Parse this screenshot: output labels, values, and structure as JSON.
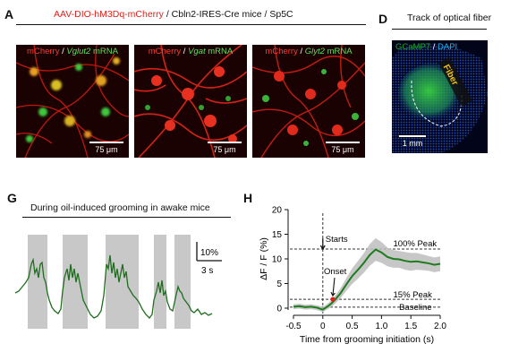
{
  "panelA": {
    "letter": "A",
    "title_red": "AAV-DIO-hM3Dq-mCherry",
    "title_black": " / Cbln2-IRES-Cre mice / Sp5C",
    "images": [
      {
        "red": "mCherry",
        "sep": " / ",
        "gene": "Vglut2",
        "green": " mRNA",
        "scale": "75 μm"
      },
      {
        "red": "mCherry",
        "sep": " / ",
        "gene": "Vgat",
        "green": " mRNA",
        "scale": "75 μm"
      },
      {
        "red": "mCherry",
        "sep": " / ",
        "gene": "Glyt2",
        "green": " mRNA",
        "scale": "75 μm"
      }
    ]
  },
  "panelD": {
    "letter": "D",
    "title": "Track of optical fiber",
    "stain_green": "GCaMP7",
    "stain_sep": " / ",
    "stain_blue": "DAPI",
    "fiber_label": "Fiber",
    "scale": "1 mm"
  },
  "panelG": {
    "letter": "G",
    "title": "During oil-induced grooming in awake mice",
    "scale_y": "10%",
    "scale_x": "3 s"
  },
  "panelH": {
    "letter": "H",
    "chart_data": {
      "type": "line",
      "xlabel": "Time from grooming initiation (s)",
      "ylabel": "ΔF / F (%)",
      "xlim": [
        -0.5,
        2.0
      ],
      "ylim": [
        0,
        20
      ],
      "xticks": [
        -0.5,
        0,
        0.5,
        1.0,
        1.5,
        2.0
      ],
      "xtick_labels": [
        "-0.5",
        "0",
        "0.5",
        "1.0",
        "1.5",
        "2.0"
      ],
      "yticks": [
        0,
        5,
        10,
        15,
        20
      ],
      "ytick_labels": [
        "0",
        "5",
        "10",
        "15",
        "20"
      ],
      "series": [
        {
          "color": "#1e7b1e",
          "x": [
            -0.5,
            -0.4,
            -0.3,
            -0.2,
            -0.1,
            0,
            0.1,
            0.15,
            0.2,
            0.3,
            0.4,
            0.5,
            0.6,
            0.7,
            0.8,
            0.9,
            1.0,
            1.1,
            1.2,
            1.3,
            1.4,
            1.5,
            1.6,
            1.7,
            1.8,
            1.9,
            2.0
          ],
          "y": [
            0.3,
            0.4,
            0.2,
            0.3,
            0.1,
            -0.3,
            0.5,
            1.0,
            1.6,
            3.0,
            4.8,
            6.5,
            7.8,
            9.2,
            10.8,
            11.9,
            11.3,
            10.4,
            10.0,
            9.9,
            9.6,
            9.4,
            9.5,
            9.3,
            9.1,
            8.8,
            9.0
          ],
          "sem": [
            0.5,
            0.5,
            0.5,
            0.5,
            0.5,
            0.5,
            0.6,
            0.7,
            0.8,
            1.0,
            1.3,
            1.6,
            1.8,
            2.0,
            2.2,
            2.3,
            2.1,
            1.9,
            1.8,
            1.7,
            1.8,
            1.8,
            1.7,
            1.6,
            1.5,
            1.5,
            1.5
          ]
        }
      ],
      "annotations": {
        "starts": "Starts",
        "onset": "Onset",
        "peak100": "100% Peak",
        "peak15": "15% Peak",
        "baseline": "Baseline",
        "peak100_value": 12.0,
        "peak15_value": 1.8,
        "baseline_value": 0.2,
        "onset_x": 0.17,
        "starts_x": 0
      }
    }
  }
}
